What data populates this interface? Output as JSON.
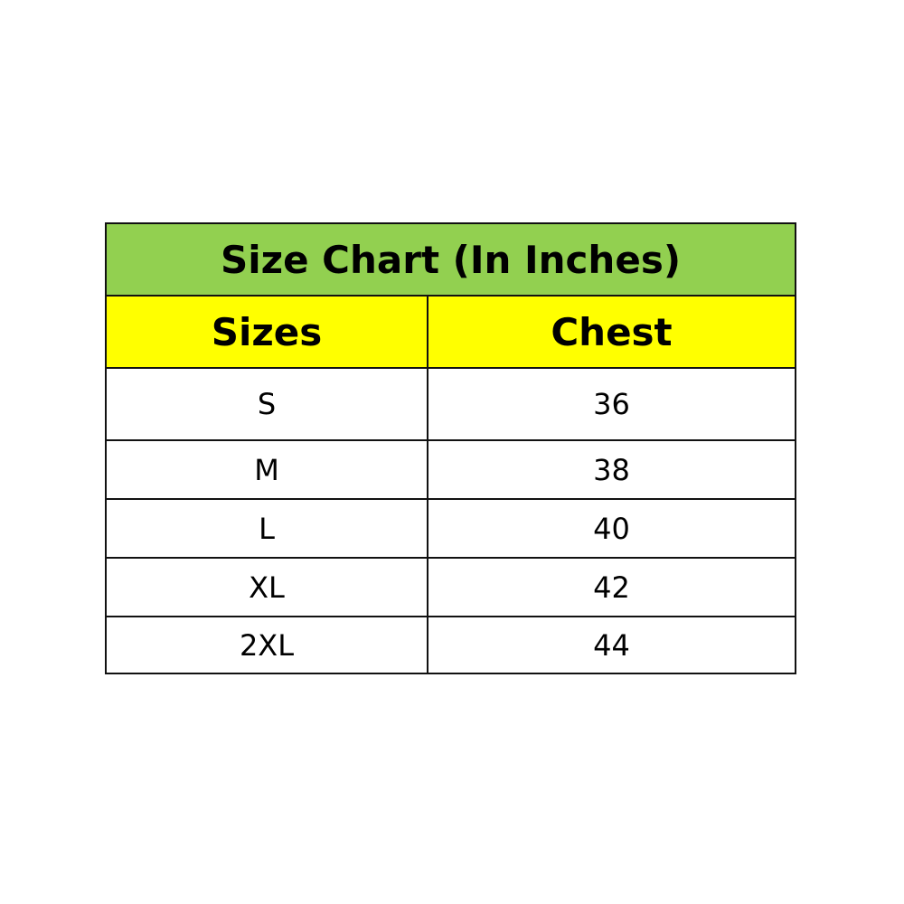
{
  "title": "Size Chart (In Inches)",
  "colors": {
    "title_bg": "#92D050",
    "header_bg": "#FFFF00"
  },
  "headers": [
    "Sizes",
    "Chest"
  ],
  "rows": [
    {
      "size": "S",
      "chest": "36"
    },
    {
      "size": "M",
      "chest": "38"
    },
    {
      "size": "L",
      "chest": "40"
    },
    {
      "size": "XL",
      "chest": "42"
    },
    {
      "size": "2XL",
      "chest": "44"
    }
  ]
}
